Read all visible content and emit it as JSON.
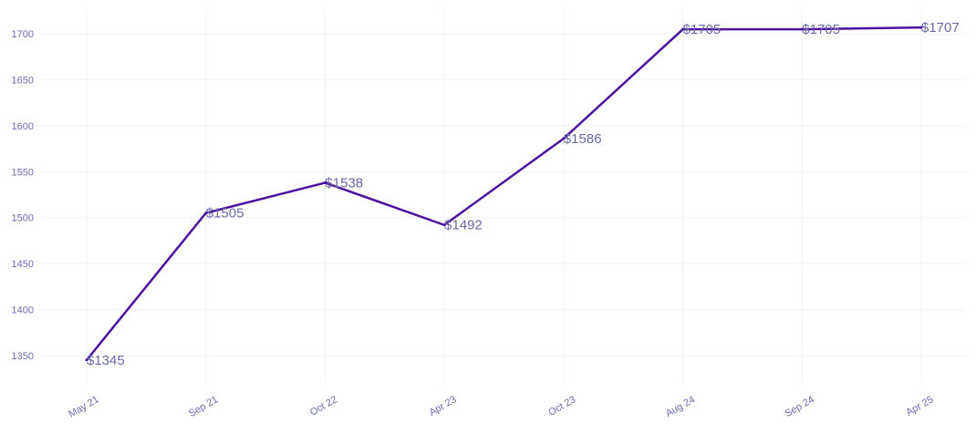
{
  "chart_data": {
    "type": "line",
    "title": "",
    "xlabel": "",
    "ylabel": "",
    "categories": [
      "May 21",
      "Sep 21",
      "Oct 22",
      "Apr 23",
      "Oct 23",
      "Aug 24",
      "Sep 24",
      "Apr 25"
    ],
    "series": [
      {
        "values": [
          1345,
          1505,
          1538,
          1492,
          1586,
          1705,
          1705,
          1707
        ],
        "labels": [
          "$1345",
          "$1505",
          "$1538",
          "$1492",
          "$1586",
          "$1705",
          "$1705",
          "$1707"
        ],
        "color": "#4a14a0"
      }
    ],
    "ylim": [
      1325,
      1725
    ],
    "yticks": [
      1350,
      1400,
      1450,
      1500,
      1550,
      1600,
      1650,
      1700
    ],
    "grid": true,
    "legend": "none",
    "colors": {
      "line": "#4a14a0",
      "tick_text": "#6b6bb0",
      "label_text": "#6a6aa8",
      "grid": "#f3f3f8"
    }
  }
}
